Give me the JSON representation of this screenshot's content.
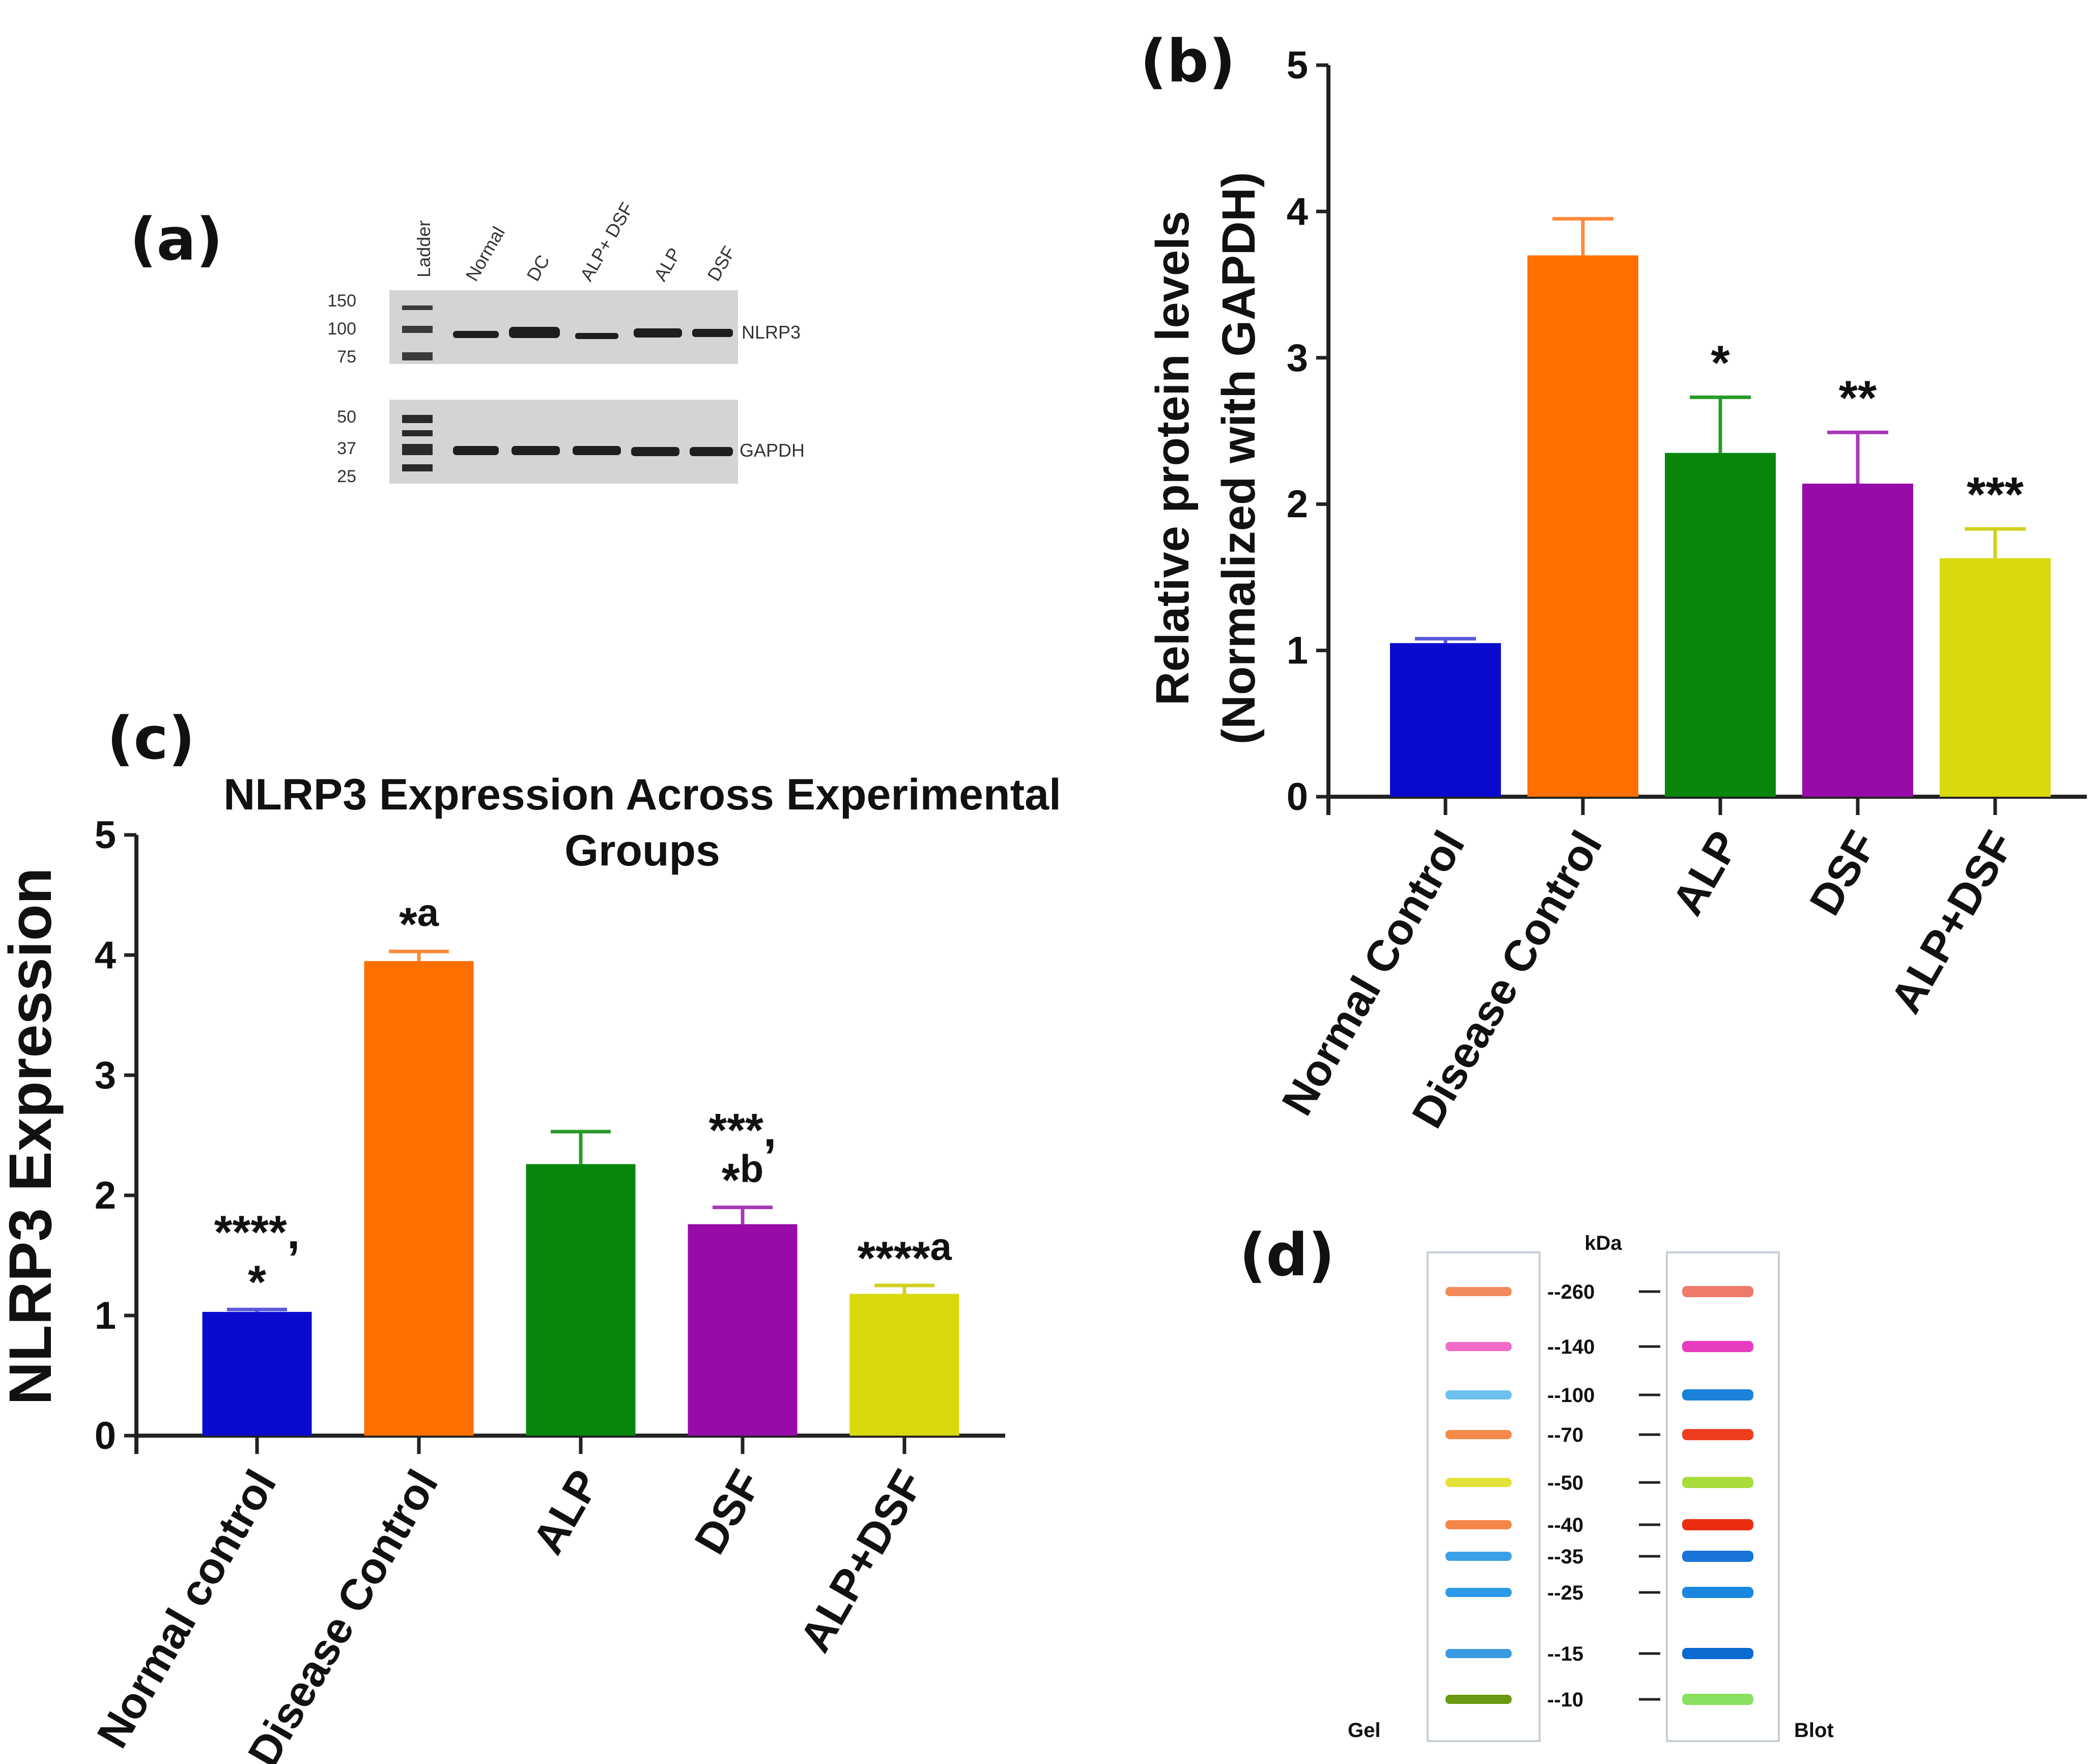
{
  "figure": {
    "panel_labels": {
      "a": "(a)",
      "b": "(b)",
      "c": "(c)",
      "d": "(d)"
    }
  },
  "blot": {
    "lanes": [
      "Ladder",
      "Normal",
      "DC",
      "ALP+ DSF",
      "ALP",
      "DSF"
    ],
    "top_markers": [
      "150",
      "100",
      "75"
    ],
    "bottom_markers": [
      "50",
      "37",
      "25"
    ],
    "top_target": "NLRP3",
    "bottom_target": "GAPDH"
  },
  "ladder": {
    "unit": "kDa",
    "left_label": "Gel",
    "right_label": "Blot",
    "markers": [
      {
        "label": "--260",
        "gel_color": "#f28a5c",
        "blot_color": "#f07a6a"
      },
      {
        "label": "--140",
        "gel_color": "#f06cc8",
        "blot_color": "#e83cc0"
      },
      {
        "label": "--100",
        "gel_color": "#6ec0ee",
        "blot_color": "#1a82d8"
      },
      {
        "label": "--70",
        "gel_color": "#f5894a",
        "blot_color": "#ee3c1e"
      },
      {
        "label": "--50",
        "gel_color": "#e4e23a",
        "blot_color": "#a8dc3a"
      },
      {
        "label": "--40",
        "gel_color": "#f5864a",
        "blot_color": "#ea2c10"
      },
      {
        "label": "--35",
        "gel_color": "#3aa0e8",
        "blot_color": "#1874d8"
      },
      {
        "label": "--25",
        "gel_color": "#2c9ae6",
        "blot_color": "#1a86e0"
      },
      {
        "label": "--15",
        "gel_color": "#3a9ae0",
        "blot_color": "#0a6ad0"
      },
      {
        "label": "--10",
        "gel_color": "#6a9a10",
        "blot_color": "#8ae060"
      }
    ]
  },
  "chart_data": [
    {
      "panel": "b",
      "type": "bar",
      "title": "",
      "xlabel": "",
      "ylabel": "Relative protein levels",
      "ylabel2": "(Normalized with GAPDH)",
      "ylim": [
        0,
        5
      ],
      "yticks": [
        "0",
        "1",
        "2",
        "3",
        "4",
        "5"
      ],
      "categories": [
        "Normal Control",
        "Disease Control",
        "ALP",
        "DSF",
        "ALP+DSF"
      ],
      "values": [
        1.05,
        3.7,
        2.35,
        2.14,
        1.63
      ],
      "errors": [
        0.03,
        0.25,
        0.38,
        0.35,
        0.2
      ],
      "annotations": [
        "",
        "",
        "*",
        "**",
        "***"
      ],
      "colors": [
        "#0b0bd0",
        "#ff7000",
        "#08860c",
        "#980ba8",
        "#d8d80c"
      ],
      "error_colors": [
        "#5a5ad8",
        "#ff8a3a",
        "#2a9a2a",
        "#a838b8",
        "#d0d020"
      ]
    },
    {
      "panel": "c",
      "type": "bar",
      "title": "NLRP3 Expression Across Experimental",
      "title2": "Groups",
      "xlabel": "",
      "ylabel": "NLRP3 Expression",
      "ylim": [
        0,
        5
      ],
      "yticks": [
        "0",
        "1",
        "2",
        "3",
        "4",
        "5"
      ],
      "categories": [
        "Normal control",
        "Disease Control",
        "ALP",
        "DSF",
        "ALP+DSF"
      ],
      "values": [
        1.03,
        3.95,
        2.26,
        1.76,
        1.18
      ],
      "errors": [
        0.02,
        0.08,
        0.27,
        0.14,
        0.07
      ],
      "annotations": [
        {
          "line1": "****,",
          "line2": "*",
          "sup": ""
        },
        {
          "line1": "",
          "line2": "*",
          "sup": "a"
        },
        {
          "line1": "",
          "line2": "",
          "sup": ""
        },
        {
          "line1": "***,",
          "line2": "*",
          "sup": "b"
        },
        {
          "line1": "",
          "line2": "****",
          "sup": "a"
        }
      ],
      "colors": [
        "#0b0bd0",
        "#ff7000",
        "#08860c",
        "#980ba8",
        "#d8d80c"
      ],
      "error_colors": [
        "#5a5ad8",
        "#ff8a3a",
        "#2a9a2a",
        "#a838b8",
        "#d0d020"
      ]
    }
  ]
}
